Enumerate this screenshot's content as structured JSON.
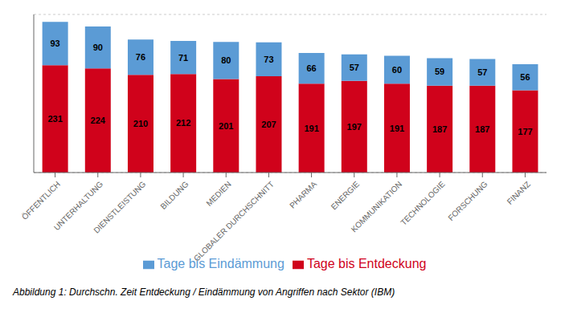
{
  "chart_data": {
    "type": "bar",
    "caption": "Abbildung 1: Durchschn. Zeit Entdeckung / Eindämmung von Angriffen nach Sektor (IBM)",
    "categories": [
      "ÖFFENTLICH",
      "UNTERHALTUNG",
      "DIENSTLEISTUNG",
      "BILDUNG",
      "MEDIEN",
      "GLOBALER DURCHSCHNITT",
      "PHARMA",
      "ENERGIE",
      "KOMMUNIKATION",
      "TECHNOLOGIE",
      "FORSCHUNG",
      "FINANZ"
    ],
    "series": [
      {
        "name": "Tage bis Entdeckung",
        "color": "#D0021B",
        "values": [
          231,
          224,
          210,
          212,
          201,
          207,
          191,
          197,
          191,
          187,
          187,
          177
        ]
      },
      {
        "name": "Tage bis Eindämmung",
        "color": "#5B9BD5",
        "values": [
          93,
          90,
          76,
          71,
          80,
          73,
          66,
          57,
          60,
          59,
          57,
          56
        ]
      }
    ],
    "ylim": [
      0,
      340
    ],
    "yticks": [
      0,
      50,
      100,
      150,
      200,
      250,
      300
    ],
    "grid": true,
    "stacked": true,
    "data_labels": true,
    "tick_labels": "x",
    "legend": "bottom"
  }
}
